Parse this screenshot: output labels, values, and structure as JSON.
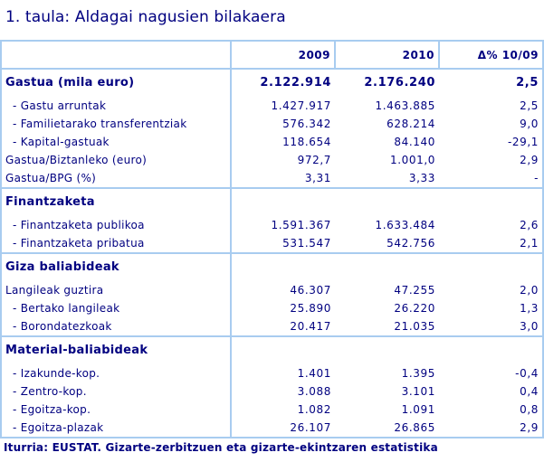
{
  "title": "1. taula: Aldagai nagusien bilakaera",
  "table": {
    "headers": [
      "",
      "2009",
      "2010",
      "Δ% 10/09"
    ],
    "sections": [
      {
        "heading": "Gastua  (mila euro)",
        "heading_values": [
          "2.122.914",
          "2.176.240",
          "2,5"
        ],
        "rows": [
          {
            "label": "- Gastu arruntak",
            "sub": true,
            "v2009": "1.427.917",
            "v2010": "1.463.885",
            "delta": "2,5"
          },
          {
            "label": "- Familietarako transferentziak",
            "sub": true,
            "v2009": "576.342",
            "v2010": "628.214",
            "delta": "9,0"
          },
          {
            "label": "- Kapital-gastuak",
            "sub": true,
            "v2009": "118.654",
            "v2010": "84.140",
            "delta": "-29,1"
          },
          {
            "label": "Gastua/Biztanleko (euro)",
            "sub": false,
            "v2009": "972,7",
            "v2010": "1.001,0",
            "delta": "2,9"
          },
          {
            "label": "Gastua/BPG (%)",
            "sub": false,
            "v2009": "3,31",
            "v2010": "3,33",
            "delta": "-"
          }
        ]
      },
      {
        "heading": "Finantzaketa",
        "heading_values": [
          "",
          "",
          ""
        ],
        "rows": [
          {
            "label": "- Finantzaketa publikoa",
            "sub": true,
            "v2009": "1.591.367",
            "v2010": "1.633.484",
            "delta": "2,6"
          },
          {
            "label": "- Finantzaketa pribatua",
            "sub": true,
            "v2009": "531.547",
            "v2010": "542.756",
            "delta": "2,1"
          }
        ]
      },
      {
        "heading": "Giza baliabideak",
        "heading_values": [
          "",
          "",
          ""
        ],
        "rows": [
          {
            "label": "Langileak guztira",
            "sub": false,
            "v2009": "46.307",
            "v2010": "47.255",
            "delta": "2,0"
          },
          {
            "label": "- Bertako langileak",
            "sub": true,
            "v2009": "25.890",
            "v2010": "26.220",
            "delta": "1,3"
          },
          {
            "label": "- Borondatezkoak",
            "sub": true,
            "v2009": "20.417",
            "v2010": "21.035",
            "delta": "3,0"
          }
        ]
      },
      {
        "heading": "Material-baliabideak",
        "heading_values": [
          "",
          "",
          ""
        ],
        "rows": [
          {
            "label": "- Izakunde-kop.",
            "sub": true,
            "v2009": "1.401",
            "v2010": "1.395",
            "delta": "-0,4"
          },
          {
            "label": "- Zentro-kop.",
            "sub": true,
            "v2009": "3.088",
            "v2010": "3.101",
            "delta": "0,4"
          },
          {
            "label": "- Egoitza-kop.",
            "sub": true,
            "v2009": "1.082",
            "v2010": "1.091",
            "delta": "0,8"
          },
          {
            "label": "- Egoitza-plazak",
            "sub": true,
            "v2009": "26.107",
            "v2010": "26.865",
            "delta": "2,9"
          }
        ]
      }
    ]
  },
  "source": "Iturria: EUSTAT. Gizarte-zerbitzuen eta gizarte-ekintzaren estatistika",
  "colors": {
    "text": "#000080",
    "border": "#a8ccf0",
    "background": "#ffffff"
  }
}
